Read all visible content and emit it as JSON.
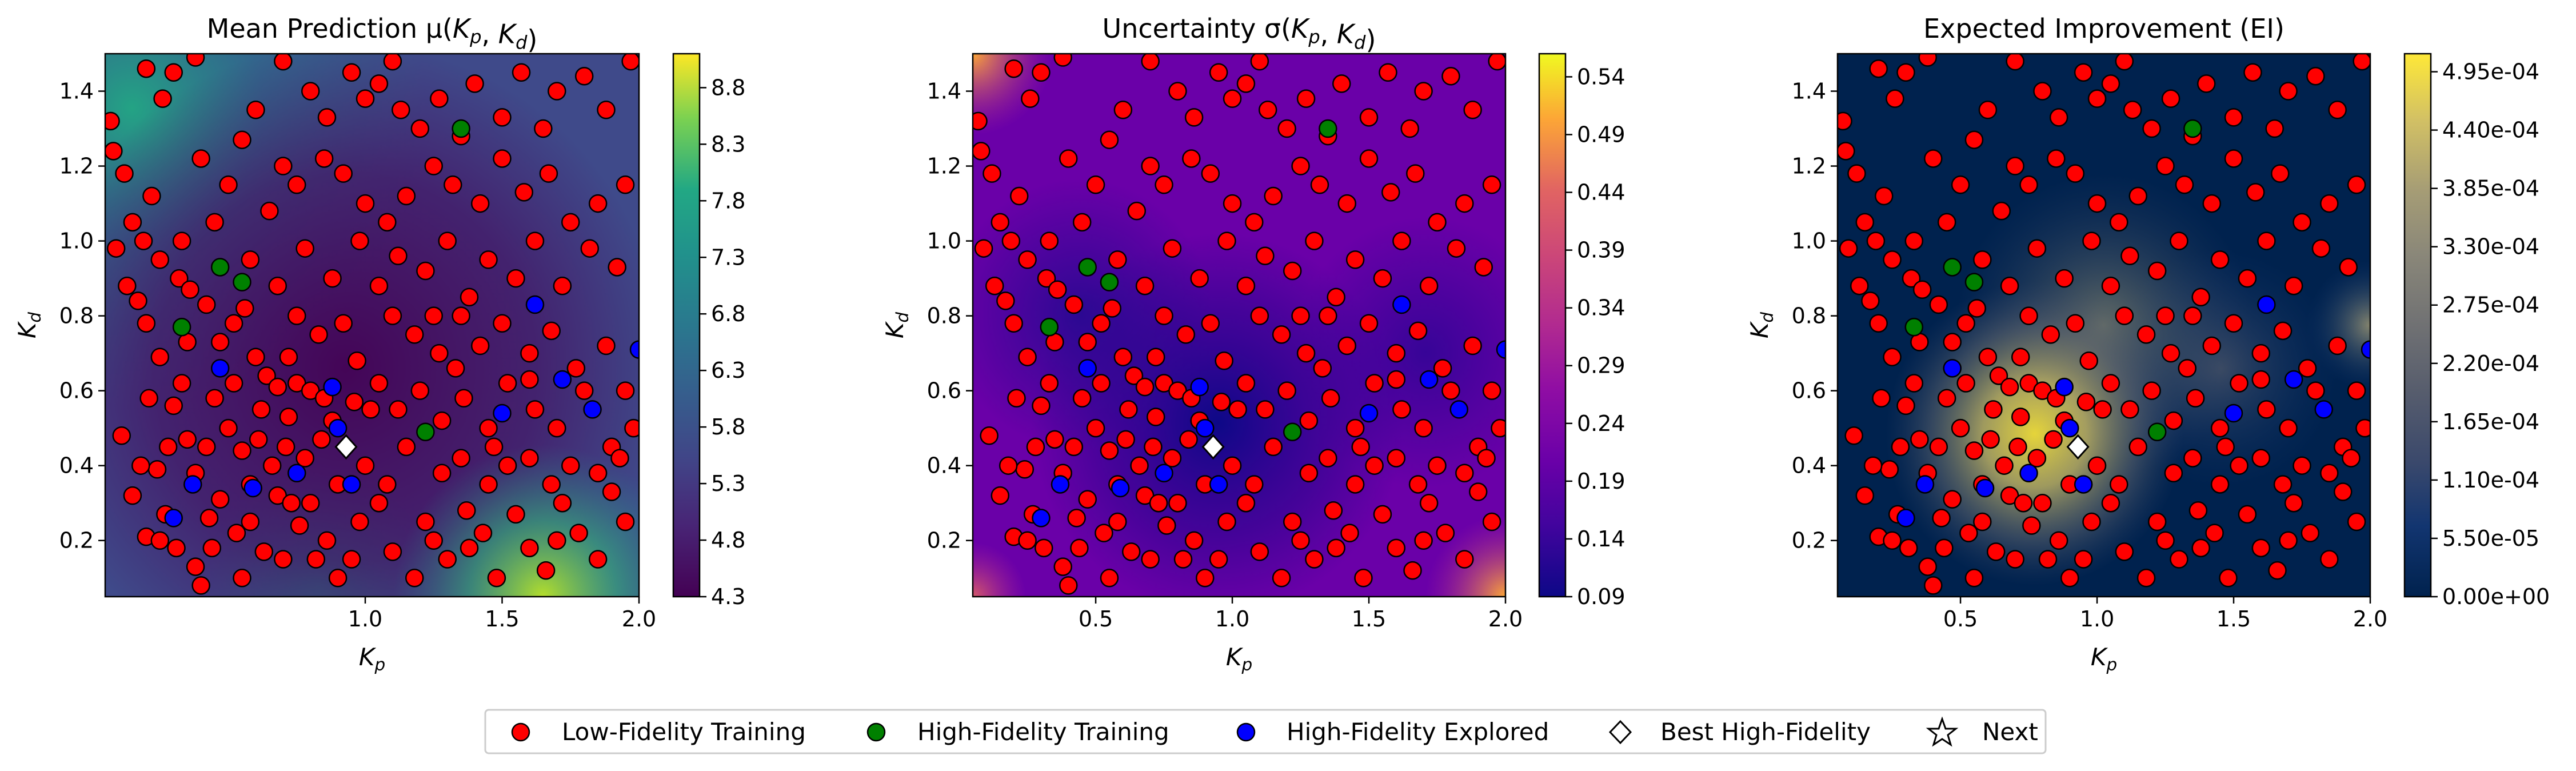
{
  "chart_data": [
    {
      "type": "heatmap",
      "title": "Mean Prediction μ(K_p, K_d)",
      "xlabel": "K_p",
      "ylabel": "K_d",
      "xlim": [
        0.05,
        2.0
      ],
      "ylim": [
        0.05,
        1.5
      ],
      "xticks": [
        "1.0",
        "1.5",
        "2.0"
      ],
      "xtick_values": [
        1.0,
        1.5,
        2.0
      ],
      "yticks": [
        "0.2",
        "0.4",
        "0.6",
        "0.8",
        "1.0",
        "1.2",
        "1.4"
      ],
      "ytick_values": [
        0.2,
        0.4,
        0.6,
        0.8,
        1.0,
        1.2,
        1.4
      ],
      "colormap": "viridis",
      "colorbar_range": [
        4.3,
        9.1
      ],
      "colorbar_ticks": [
        "4.3",
        "4.8",
        "5.3",
        "5.8",
        "6.3",
        "6.8",
        "7.3",
        "7.8",
        "8.3",
        "8.8"
      ],
      "colorbar_tick_values": [
        4.3,
        4.8,
        5.3,
        5.8,
        6.3,
        6.8,
        7.3,
        7.8,
        8.3,
        8.8
      ]
    },
    {
      "type": "heatmap",
      "title": "Uncertainty σ(K_p, K_d)",
      "xlabel": "K_p",
      "ylabel": "K_d",
      "xlim": [
        0.05,
        2.0
      ],
      "ylim": [
        0.05,
        1.5
      ],
      "xticks": [
        "0.5",
        "1.0",
        "1.5",
        "2.0"
      ],
      "xtick_values": [
        0.5,
        1.0,
        1.5,
        2.0
      ],
      "yticks": [
        "0.2",
        "0.4",
        "0.6",
        "0.8",
        "1.0",
        "1.2",
        "1.4"
      ],
      "ytick_values": [
        0.2,
        0.4,
        0.6,
        0.8,
        1.0,
        1.2,
        1.4
      ],
      "colormap": "plasma",
      "colorbar_range": [
        0.09,
        0.56
      ],
      "colorbar_ticks": [
        "0.09",
        "0.14",
        "0.19",
        "0.24",
        "0.29",
        "0.34",
        "0.39",
        "0.44",
        "0.49",
        "0.54"
      ],
      "colorbar_tick_values": [
        0.09,
        0.14,
        0.19,
        0.24,
        0.29,
        0.34,
        0.39,
        0.44,
        0.49,
        0.54
      ]
    },
    {
      "type": "heatmap",
      "title": "Expected Improvement (EI)",
      "xlabel": "K_p",
      "ylabel": "K_d",
      "xlim": [
        0.05,
        2.0
      ],
      "ylim": [
        0.05,
        1.5
      ],
      "xticks": [
        "0.5",
        "1.0",
        "1.5",
        "2.0"
      ],
      "xtick_values": [
        0.5,
        1.0,
        1.5,
        2.0
      ],
      "yticks": [
        "0.2",
        "0.4",
        "0.6",
        "0.8",
        "1.0",
        "1.2",
        "1.4"
      ],
      "ytick_values": [
        0.2,
        0.4,
        0.6,
        0.8,
        1.0,
        1.2,
        1.4
      ],
      "colormap": "cividis",
      "colorbar_range": [
        0,
        0.000512
      ],
      "colorbar_ticks": [
        "0.00e+00",
        "5.50e-05",
        "1.10e-04",
        "1.65e-04",
        "2.20e-04",
        "2.75e-04",
        "3.30e-04",
        "3.85e-04",
        "4.40e-04",
        "4.95e-04"
      ],
      "colorbar_tick_values": [
        0,
        5.5e-05,
        0.00011,
        0.000165,
        0.00022,
        0.000275,
        0.00033,
        0.000385,
        0.00044,
        0.000495
      ]
    }
  ],
  "points": {
    "low_fidelity": [
      [
        0.07,
        1.32
      ],
      [
        0.08,
        1.24
      ],
      [
        0.12,
        1.18
      ],
      [
        0.2,
        1.46
      ],
      [
        0.3,
        1.45
      ],
      [
        0.38,
        1.49
      ],
      [
        0.26,
        1.38
      ],
      [
        0.15,
        1.05
      ],
      [
        0.22,
        1.12
      ],
      [
        0.09,
        0.98
      ],
      [
        0.19,
        1.0
      ],
      [
        0.25,
        0.95
      ],
      [
        0.13,
        0.88
      ],
      [
        0.17,
        0.84
      ],
      [
        0.32,
        0.9
      ],
      [
        0.36,
        0.87
      ],
      [
        0.42,
        0.83
      ],
      [
        0.35,
        0.73
      ],
      [
        0.47,
        0.73
      ],
      [
        0.52,
        0.78
      ],
      [
        0.56,
        0.82
      ],
      [
        0.6,
        0.69
      ],
      [
        0.64,
        0.64
      ],
      [
        0.72,
        0.69
      ],
      [
        0.68,
        0.61
      ],
      [
        0.75,
        0.62
      ],
      [
        0.8,
        0.6
      ],
      [
        0.85,
        0.58
      ],
      [
        0.25,
        0.69
      ],
      [
        0.33,
        0.62
      ],
      [
        0.21,
        0.58
      ],
      [
        0.11,
        0.48
      ],
      [
        0.28,
        0.45
      ],
      [
        0.24,
        0.39
      ],
      [
        0.35,
        0.47
      ],
      [
        0.42,
        0.45
      ],
      [
        0.5,
        0.5
      ],
      [
        0.55,
        0.44
      ],
      [
        0.61,
        0.47
      ],
      [
        0.66,
        0.4
      ],
      [
        0.71,
        0.45
      ],
      [
        0.78,
        0.42
      ],
      [
        0.84,
        0.47
      ],
      [
        0.88,
        0.52
      ],
      [
        0.96,
        0.57
      ],
      [
        1.02,
        0.55
      ],
      [
        0.15,
        0.32
      ],
      [
        0.2,
        0.21
      ],
      [
        0.25,
        0.2
      ],
      [
        0.27,
        0.27
      ],
      [
        0.31,
        0.18
      ],
      [
        0.38,
        0.13
      ],
      [
        0.43,
        0.26
      ],
      [
        0.47,
        0.31
      ],
      [
        0.53,
        0.22
      ],
      [
        0.58,
        0.25
      ],
      [
        0.63,
        0.17
      ],
      [
        0.7,
        0.15
      ],
      [
        0.76,
        0.24
      ],
      [
        0.8,
        0.3
      ],
      [
        0.86,
        0.2
      ],
      [
        0.9,
        0.1
      ],
      [
        0.95,
        0.15
      ],
      [
        0.98,
        0.25
      ],
      [
        1.05,
        0.3
      ],
      [
        1.1,
        0.17
      ],
      [
        1.18,
        0.1
      ],
      [
        1.25,
        0.2
      ],
      [
        1.3,
        0.15
      ],
      [
        1.37,
        0.28
      ],
      [
        1.43,
        0.22
      ],
      [
        1.48,
        0.1
      ],
      [
        1.55,
        0.27
      ],
      [
        1.6,
        0.18
      ],
      [
        1.66,
        0.12
      ],
      [
        1.72,
        0.3
      ],
      [
        1.78,
        0.22
      ],
      [
        1.85,
        0.15
      ],
      [
        1.9,
        0.33
      ],
      [
        1.95,
        0.25
      ],
      [
        0.55,
        0.1
      ],
      [
        0.4,
        0.08
      ],
      [
        0.6,
        1.35
      ],
      [
        0.55,
        1.27
      ],
      [
        0.7,
        1.48
      ],
      [
        0.8,
        1.4
      ],
      [
        0.86,
        1.33
      ],
      [
        0.95,
        1.45
      ],
      [
        1.0,
        1.38
      ],
      [
        1.05,
        1.42
      ],
      [
        1.1,
        1.48
      ],
      [
        1.13,
        1.35
      ],
      [
        1.2,
        1.3
      ],
      [
        1.27,
        1.38
      ],
      [
        1.35,
        1.28
      ],
      [
        1.4,
        1.42
      ],
      [
        1.5,
        1.33
      ],
      [
        1.57,
        1.45
      ],
      [
        1.65,
        1.3
      ],
      [
        1.7,
        1.4
      ],
      [
        1.8,
        1.44
      ],
      [
        1.88,
        1.35
      ],
      [
        1.97,
        1.48
      ],
      [
        0.7,
        1.2
      ],
      [
        0.75,
        1.15
      ],
      [
        0.85,
        1.22
      ],
      [
        0.92,
        1.18
      ],
      [
        1.0,
        1.1
      ],
      [
        1.08,
        1.05
      ],
      [
        1.15,
        1.12
      ],
      [
        1.25,
        1.2
      ],
      [
        1.32,
        1.15
      ],
      [
        1.42,
        1.1
      ],
      [
        1.5,
        1.22
      ],
      [
        1.58,
        1.13
      ],
      [
        1.67,
        1.18
      ],
      [
        1.75,
        1.05
      ],
      [
        1.85,
        1.1
      ],
      [
        1.95,
        1.15
      ],
      [
        0.65,
        1.08
      ],
      [
        0.78,
        0.98
      ],
      [
        0.88,
        0.9
      ],
      [
        0.98,
        1.0
      ],
      [
        1.05,
        0.88
      ],
      [
        1.12,
        0.96
      ],
      [
        1.22,
        0.92
      ],
      [
        1.3,
        1.0
      ],
      [
        1.38,
        0.85
      ],
      [
        1.45,
        0.95
      ],
      [
        1.55,
        0.9
      ],
      [
        1.62,
        1.0
      ],
      [
        1.72,
        0.88
      ],
      [
        1.82,
        0.98
      ],
      [
        1.92,
        0.93
      ],
      [
        1.1,
        0.8
      ],
      [
        1.18,
        0.75
      ],
      [
        1.27,
        0.7
      ],
      [
        1.35,
        0.8
      ],
      [
        1.42,
        0.72
      ],
      [
        1.5,
        0.78
      ],
      [
        1.6,
        0.7
      ],
      [
        1.68,
        0.76
      ],
      [
        1.77,
        0.66
      ],
      [
        1.88,
        0.72
      ],
      [
        1.95,
        0.6
      ],
      [
        1.05,
        0.62
      ],
      [
        1.12,
        0.55
      ],
      [
        1.2,
        0.6
      ],
      [
        1.28,
        0.52
      ],
      [
        1.36,
        0.58
      ],
      [
        1.45,
        0.5
      ],
      [
        1.52,
        0.62
      ],
      [
        1.62,
        0.55
      ],
      [
        1.7,
        0.5
      ],
      [
        1.8,
        0.6
      ],
      [
        1.9,
        0.45
      ],
      [
        1.98,
        0.5
      ],
      [
        1.0,
        0.4
      ],
      [
        1.08,
        0.35
      ],
      [
        1.15,
        0.45
      ],
      [
        1.28,
        0.38
      ],
      [
        1.35,
        0.42
      ],
      [
        1.45,
        0.35
      ],
      [
        1.52,
        0.4
      ],
      [
        1.6,
        0.42
      ],
      [
        1.68,
        0.35
      ],
      [
        1.75,
        0.4
      ],
      [
        1.85,
        0.38
      ],
      [
        1.93,
        0.42
      ],
      [
        0.2,
        0.78
      ],
      [
        0.3,
        0.56
      ],
      [
        0.45,
        0.58
      ],
      [
        0.52,
        0.62
      ],
      [
        0.18,
        0.4
      ],
      [
        0.38,
        0.38
      ],
      [
        0.62,
        0.55
      ],
      [
        0.72,
        0.53
      ],
      [
        0.58,
        0.35
      ],
      [
        0.68,
        0.32
      ],
      [
        0.73,
        0.3
      ],
      [
        0.9,
        0.35
      ],
      [
        0.82,
        0.15
      ],
      [
        0.44,
        0.18
      ],
      [
        0.5,
        1.15
      ],
      [
        0.4,
        1.22
      ],
      [
        0.45,
        1.05
      ],
      [
        0.33,
        1.0
      ],
      [
        0.58,
        0.95
      ],
      [
        0.68,
        0.88
      ],
      [
        0.75,
        0.8
      ],
      [
        0.83,
        0.75
      ],
      [
        0.92,
        0.78
      ],
      [
        0.97,
        0.68
      ],
      [
        1.25,
        0.8
      ],
      [
        1.6,
        0.63
      ],
      [
        1.33,
        0.66
      ],
      [
        1.47,
        0.45
      ],
      [
        1.22,
        0.25
      ],
      [
        1.38,
        0.18
      ],
      [
        1.7,
        0.2
      ]
    ],
    "high_fidelity_training": [
      [
        0.47,
        0.93
      ],
      [
        0.55,
        0.89
      ],
      [
        0.33,
        0.77
      ],
      [
        1.22,
        0.49
      ],
      [
        1.35,
        1.3
      ]
    ],
    "high_fidelity_explored": [
      [
        0.47,
        0.66
      ],
      [
        0.37,
        0.35
      ],
      [
        0.3,
        0.26
      ],
      [
        0.59,
        0.34
      ],
      [
        0.75,
        0.38
      ],
      [
        0.9,
        0.5
      ],
      [
        0.95,
        0.35
      ],
      [
        0.88,
        0.61
      ],
      [
        1.5,
        0.54
      ],
      [
        1.62,
        0.83
      ],
      [
        1.72,
        0.63
      ],
      [
        1.83,
        0.55
      ],
      [
        2.0,
        0.71
      ]
    ],
    "best_high_fidelity": [
      0.93,
      0.45
    ]
  },
  "legend": {
    "items": [
      "Low-Fidelity Training",
      "High-Fidelity Training",
      "High-Fidelity Explored",
      "Best High-Fidelity",
      "Next"
    ]
  },
  "colors": {
    "low_fidelity": "#ff0000",
    "high_fidelity_training": "#008000",
    "high_fidelity_explored": "#0000ff",
    "best_high_fidelity": "#ffffff",
    "next": "#ffffff"
  }
}
